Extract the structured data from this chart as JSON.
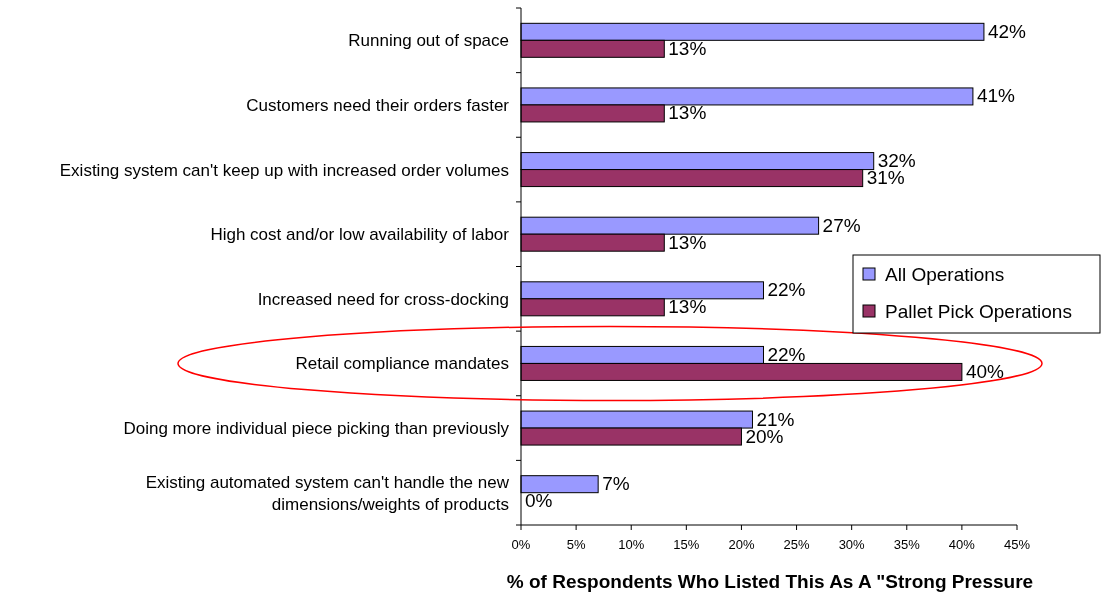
{
  "chart_data": {
    "type": "bar",
    "orientation": "horizontal",
    "xlabel": "% of Respondents Who Listed This As A \"Strong Pressure",
    "categories": [
      "Running out of space",
      "Customers need their orders faster",
      "Existing system can't keep up with increased order volumes",
      "High cost and/or low availability of labor",
      "Increased need for cross-docking",
      "Retail compliance mandates",
      "Doing more individual piece picking than previously",
      "Existing automated system can't handle the new dimensions/weights of products"
    ],
    "series": [
      {
        "name": "All Operations",
        "color": "#9999ff",
        "values": [
          42,
          41,
          32,
          27,
          22,
          22,
          21,
          7
        ],
        "value_labels": [
          "42%",
          "41%",
          "32%",
          "27%",
          "22%",
          "22%",
          "21%",
          "7%"
        ]
      },
      {
        "name": "Pallet Pick Operations",
        "color": "#993366",
        "values": [
          13,
          13,
          31,
          13,
          13,
          40,
          20,
          0
        ],
        "value_labels": [
          "13%",
          "13%",
          "31%",
          "13%",
          "13%",
          "40%",
          "20%",
          "0%"
        ]
      }
    ],
    "xlim": [
      0,
      45
    ],
    "xticks": [
      {
        "value": 0,
        "label": "0%"
      },
      {
        "value": 5,
        "label": "5%"
      },
      {
        "value": 10,
        "label": "10%"
      },
      {
        "value": 15,
        "label": "15%"
      },
      {
        "value": 20,
        "label": "20%"
      },
      {
        "value": 25,
        "label": "25%"
      },
      {
        "value": 30,
        "label": "30%"
      },
      {
        "value": 35,
        "label": "35%"
      },
      {
        "value": 40,
        "label": "40%"
      },
      {
        "value": 45,
        "label": "45%"
      }
    ],
    "legend": "right",
    "grid": false
  }
}
